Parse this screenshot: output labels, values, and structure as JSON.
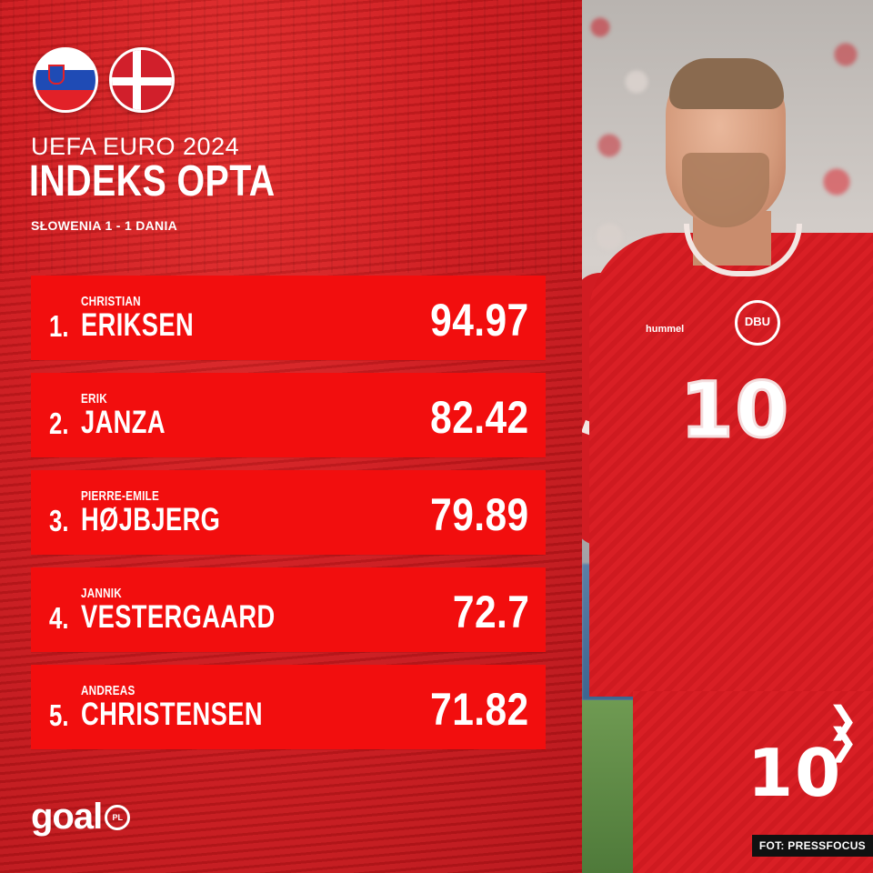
{
  "header": {
    "subtitle": "UEFA EURO 2024",
    "title": "INDEKS OPTA",
    "match": "SŁOWENIA 1 - 1 DANIA"
  },
  "flags": [
    {
      "name": "slovenia-flag-icon"
    },
    {
      "name": "denmark-flag-icon"
    }
  ],
  "rankings": [
    {
      "rank": "1.",
      "first": "CHRISTIAN",
      "last": "ERIKSEN",
      "score": "94.97"
    },
    {
      "rank": "2.",
      "first": "ERIK",
      "last": "JANZA",
      "score": "82.42"
    },
    {
      "rank": "3.",
      "first": "PIERRE-EMILE",
      "last": "HØJBJERG",
      "score": "79.89"
    },
    {
      "rank": "4.",
      "first": "JANNIK",
      "last": "VESTERGAARD",
      "score": "72.7"
    },
    {
      "rank": "5.",
      "first": "ANDREAS",
      "last": "CHRISTENSEN",
      "score": "71.82"
    }
  ],
  "photo": {
    "credit": "FOT: PRESSFOCUS",
    "shirt_number": "10",
    "shorts_number": "10",
    "badge_text": "DBU",
    "maker": "hummel"
  },
  "brand": {
    "word": "goal",
    "sub": "PL"
  },
  "colors": {
    "panel_red": "#cf1a1e",
    "row_red": "#f20e0e",
    "text_white": "#ffffff"
  }
}
